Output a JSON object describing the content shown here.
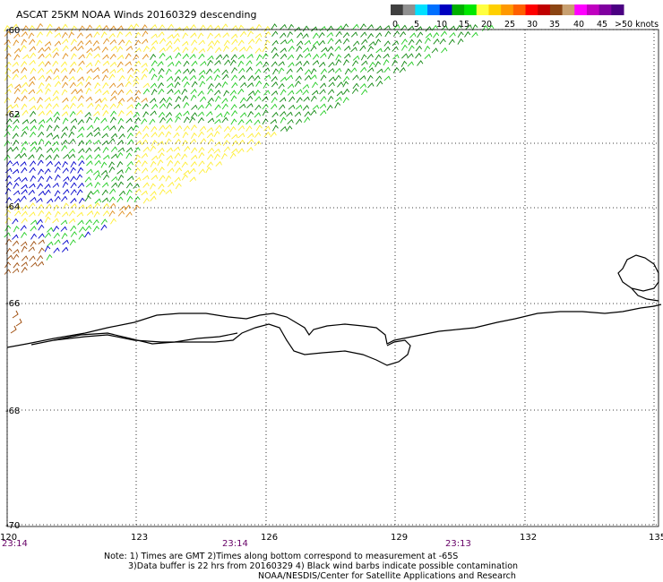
{
  "title": "ASCAT 25KM NOAA Winds 20160329 descending",
  "legend": {
    "labels": [
      "0",
      "5",
      "10",
      "15",
      "20",
      "25",
      "30",
      "35",
      "40",
      "45",
      ">50 knots"
    ],
    "colors": [
      "#404040",
      "#909090",
      "#00e0ff",
      "#0070ff",
      "#0000c0",
      "#00b000",
      "#00e800",
      "#ffff40",
      "#ffd000",
      "#ff9900",
      "#ff6000",
      "#ff0000",
      "#c00000",
      "#8b4513",
      "#c8a070",
      "#ff00ff",
      "#c000c0",
      "#8000a0",
      "#4b0082"
    ]
  },
  "axes": {
    "lon_labels": [
      "120",
      "123",
      "126",
      "129",
      "132",
      "135"
    ],
    "lat_labels": [
      "-60",
      "-62",
      "-64",
      "-66",
      "-68",
      "-70"
    ],
    "time_labels": [
      "23:14",
      "23:14",
      "23:13"
    ]
  },
  "notes": {
    "line1": "Note: 1) Times are GMT 2)Times along bottom correspond to measurement at -65S",
    "line2": "3)Data buffer is 22 hrs from 20160329 4) Black wind barbs indicate possible contamination",
    "line3": "NOAA/NESDIS/Center for Satellite Applications and Research"
  },
  "colors": {
    "yellow": "#ffee33",
    "orange": "#e09020",
    "brown": "#a05010",
    "green_light": "#22cc22",
    "green_dark": "#118811",
    "blue": "#0000cc",
    "coast": "#000000",
    "grid": "#000000"
  }
}
